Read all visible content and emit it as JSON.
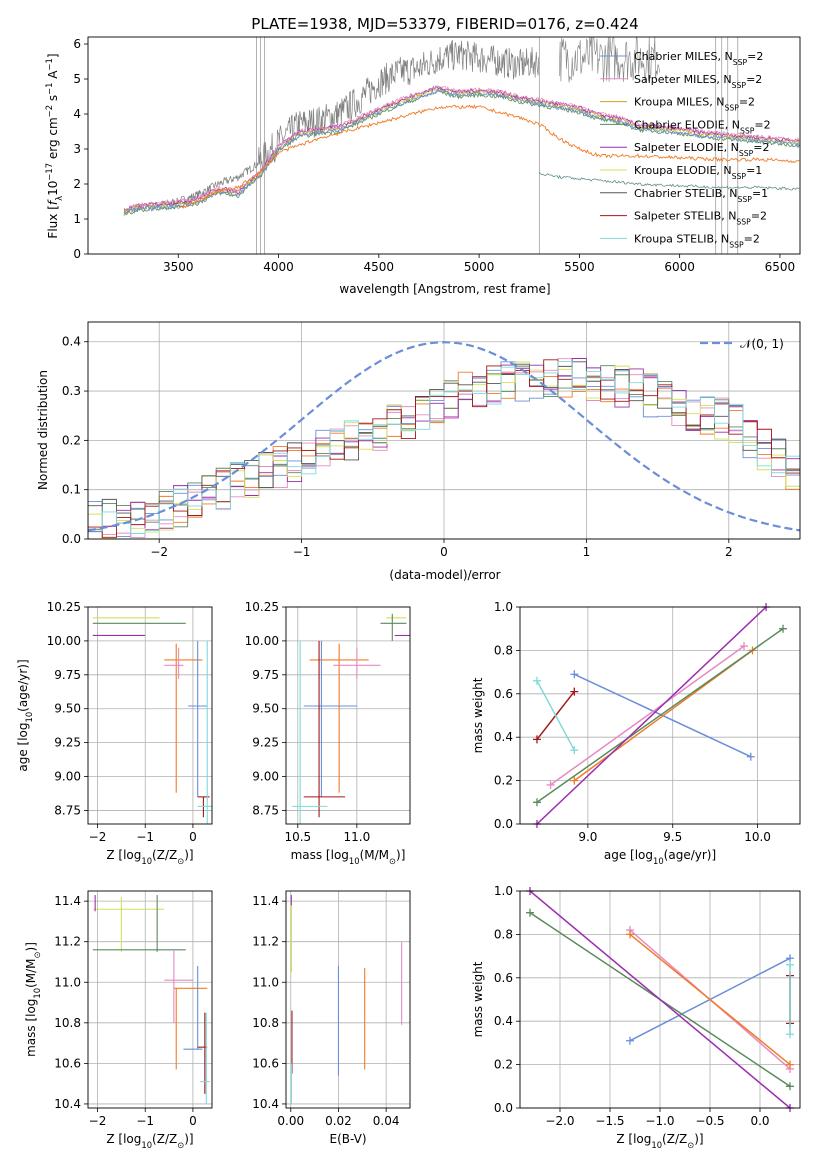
{
  "figure_title": "PLATE=1938, MJD=53379, FIBERID=0176, z=0.424",
  "palette": {
    "chabrier_miles": "#6a8fd8",
    "salpeter_miles": "#e58ac3",
    "kroupa_miles": "#c9a227",
    "chabrier_elodie": "#5b8a5b",
    "salpeter_elodie": "#9b2fae",
    "kroupa_elodie": "#d4e05a",
    "chabrier_stelib": "#555555",
    "salpeter_stelib": "#a01818",
    "kroupa_stelib": "#7fd9d9",
    "data": "#808080",
    "orange": "#f07b27"
  },
  "chart_data": [
    {
      "id": "spectrum",
      "type": "line",
      "title": "PLATE=1938, MJD=53379, FIBERID=0176, z=0.424",
      "xlabel": "wavelength [Angstrom, rest frame]",
      "ylabel_parts": [
        "Flux [f",
        "λ",
        "10",
        "−17",
        " erg cm",
        "−2",
        " s",
        "−1",
        " A",
        "−1",
        "]"
      ],
      "xlim": [
        3050,
        6600
      ],
      "ylim": [
        0,
        6.2
      ],
      "xticks": [
        3500,
        4000,
        4500,
        5000,
        5500,
        6000,
        6500
      ],
      "yticks": [
        0,
        1,
        2,
        3,
        4,
        5,
        6
      ],
      "legend_position": "upper-right",
      "legend": [
        {
          "name": "Chabrier MILES, N",
          "sub": "SSP",
          "suffix": "=2",
          "color": "#6a8fd8"
        },
        {
          "name": "Salpeter MILES, N",
          "sub": "SSP",
          "suffix": "=2",
          "color": "#e58ac3"
        },
        {
          "name": "Kroupa MILES, N",
          "sub": "SSP",
          "suffix": "=2",
          "color": "#c9a227"
        },
        {
          "name": "Chabrier ELODIE, N",
          "sub": "SSP",
          "suffix": "=2",
          "color": "#5b8a5b"
        },
        {
          "name": "Salpeter ELODIE, N",
          "sub": "SSP",
          "suffix": "=2",
          "color": "#9b2fae"
        },
        {
          "name": "Kroupa ELODIE, N",
          "sub": "SSP",
          "suffix": "=1",
          "color": "#d4e05a"
        },
        {
          "name": "Chabrier STELIB, N",
          "sub": "SSP",
          "suffix": "=1",
          "color": "#555555"
        },
        {
          "name": "Salpeter STELIB, N",
          "sub": "SSP",
          "suffix": "=2",
          "color": "#a01818"
        },
        {
          "name": "Kroupa STELIB, N",
          "sub": "SSP",
          "suffix": "=2",
          "color": "#7fd9d9"
        }
      ],
      "model_curve": {
        "x": [
          3230,
          3300,
          3400,
          3500,
          3600,
          3700,
          3800,
          3850,
          3900,
          3950,
          4000,
          4100,
          4200,
          4300,
          4400,
          4500,
          4600,
          4700,
          4800,
          4850,
          4900,
          5000,
          5100,
          5200,
          5300,
          5400,
          5500,
          5600,
          5700,
          5800,
          5900,
          6000,
          6100,
          6200,
          6300,
          6400,
          6500,
          6600
        ],
        "y": [
          1.2,
          1.3,
          1.35,
          1.4,
          1.5,
          1.8,
          1.7,
          2.0,
          2.2,
          2.6,
          3.0,
          3.4,
          3.5,
          3.55,
          3.8,
          4.05,
          4.3,
          4.5,
          4.7,
          4.6,
          4.55,
          4.6,
          4.55,
          4.4,
          4.3,
          4.2,
          4.1,
          3.9,
          3.8,
          3.6,
          3.55,
          3.5,
          3.4,
          3.35,
          3.3,
          3.25,
          3.2,
          3.15
        ]
      },
      "red_curve": {
        "x": [
          3500,
          3600,
          3700,
          3800,
          3900,
          4000,
          4200,
          4400,
          4600,
          4800,
          5000,
          5200,
          5300,
          5400,
          5500,
          5600,
          5800,
          6000,
          6200,
          6400,
          6600
        ],
        "y": [
          1.3,
          1.5,
          1.8,
          1.9,
          2.3,
          2.9,
          3.3,
          3.6,
          3.9,
          4.2,
          4.2,
          3.9,
          3.7,
          3.3,
          3.0,
          2.8,
          2.8,
          2.75,
          2.7,
          2.7,
          2.65
        ]
      },
      "low_curve": {
        "x": [
          5300,
          5400,
          5500,
          5600,
          5800,
          6000,
          6200,
          6400,
          6600
        ],
        "y": [
          2.3,
          2.2,
          2.15,
          2.1,
          2.0,
          1.95,
          1.9,
          1.9,
          1.85
        ]
      },
      "data_curve": {
        "x": [
          3230,
          3300,
          3400,
          3500,
          3600,
          3700,
          3800,
          3900,
          4000,
          4100,
          4200,
          4300,
          4400,
          4500,
          4600,
          4700,
          4800,
          4900,
          5000,
          5100,
          5200,
          5300
        ],
        "y": [
          1.2,
          1.3,
          1.4,
          1.5,
          1.7,
          2.0,
          2.2,
          2.6,
          3.2,
          3.7,
          3.8,
          4.0,
          4.4,
          4.9,
          5.2,
          5.3,
          5.6,
          5.7,
          5.6,
          5.5,
          5.4,
          5.5
        ]
      }
    },
    {
      "id": "residuals",
      "type": "line",
      "xlabel": "(data-model)/error",
      "ylabel": "Normed distribution",
      "xlim": [
        -2.5,
        2.5
      ],
      "ylim": [
        0,
        0.44
      ],
      "xticks": [
        -2,
        -1,
        0,
        1,
        2
      ],
      "xtick_labels": [
        "−2",
        "−1",
        "0",
        "1",
        "2"
      ],
      "yticks": [
        0.0,
        0.1,
        0.2,
        0.3,
        0.4
      ],
      "ytick_labels": [
        "0.0",
        "0.1",
        "0.2",
        "0.3",
        "0.4"
      ],
      "legend_label": "𝒩(0, 1)",
      "gaussian": {
        "mean": 0,
        "sigma": 1
      }
    },
    {
      "id": "age_vs_z",
      "type": "scatter",
      "xlabel": "Z [log",
      "xlabel_sub": "10",
      "xlabel_rest": "(Z/Z",
      "xlabel_sun": "⊙",
      "xlabel_end": ")]",
      "ylabel": "age  [log",
      "ylabel_sub": "10",
      "ylabel_rest": "(age/yr)]",
      "xlim": [
        -2.2,
        0.4
      ],
      "ylim": [
        8.65,
        10.25
      ],
      "xticks": [
        -2,
        -1,
        0
      ],
      "xtick_labels": [
        "−2",
        "−1",
        "0"
      ],
      "yticks": [
        8.75,
        9.0,
        9.25,
        9.5,
        9.75,
        10.0,
        10.25
      ],
      "ytick_labels": [
        "8.75",
        "9.00",
        "9.25",
        "9.50",
        "9.75",
        "10.00",
        "10.25"
      ]
    },
    {
      "id": "age_vs_mass",
      "type": "scatter",
      "xlabel": "mass [log",
      "xlabel_sub": "10",
      "xlabel_rest": "(M/M",
      "xlabel_sun": "⊙",
      "xlabel_end": ")]",
      "xlim": [
        10.4,
        11.45
      ],
      "ylim": [
        8.65,
        10.25
      ],
      "xticks": [
        10.5,
        11.0
      ],
      "xtick_labels": [
        "10.5",
        "11.0"
      ],
      "yticks": [
        8.75,
        9.0,
        9.25,
        9.5,
        9.75,
        10.0,
        10.25
      ],
      "ytick_labels": [
        "8.75",
        "9.00",
        "9.25",
        "9.50",
        "9.75",
        "10.00",
        "10.25"
      ]
    },
    {
      "id": "weight_vs_age",
      "type": "line",
      "xlabel": "age  [log",
      "xlabel_sub": "10",
      "xlabel_rest": "(age/yr)]",
      "ylabel": "mass weight",
      "xlim": [
        8.6,
        10.25
      ],
      "ylim": [
        0,
        1
      ],
      "xticks": [
        9.0,
        9.5,
        10.0
      ],
      "xtick_labels": [
        "9.0",
        "9.5",
        "10.0"
      ],
      "yticks": [
        0.0,
        0.2,
        0.4,
        0.6,
        0.8,
        1.0
      ],
      "ytick_labels": [
        "0.0",
        "0.2",
        "0.4",
        "0.6",
        "0.8",
        "1.0"
      ],
      "series": [
        {
          "color": "#6a8fd8",
          "x": [
            8.92,
            9.96
          ],
          "y": [
            0.69,
            0.31
          ]
        },
        {
          "color": "#e58ac3",
          "x": [
            8.78,
            9.92
          ],
          "y": [
            0.18,
            0.82
          ]
        },
        {
          "color": "#f07b27",
          "x": [
            8.92,
            9.97
          ],
          "y": [
            0.2,
            0.8
          ]
        },
        {
          "color": "#5b8a5b",
          "x": [
            8.7,
            10.15
          ],
          "y": [
            0.1,
            0.9
          ]
        },
        {
          "color": "#9b2fae",
          "x": [
            8.7,
            10.05
          ],
          "y": [
            0.0,
            1.0
          ]
        },
        {
          "color": "#a01818",
          "x": [
            8.7,
            8.92
          ],
          "y": [
            0.39,
            0.61
          ]
        },
        {
          "color": "#7fd9d9",
          "x": [
            8.7,
            8.92
          ],
          "y": [
            0.66,
            0.34
          ]
        }
      ]
    },
    {
      "id": "mass_vs_z",
      "type": "scatter",
      "xlabel": "Z [log",
      "xlabel_sub": "10",
      "xlabel_rest": "(Z/Z",
      "xlabel_sun": "⊙",
      "xlabel_end": ")]",
      "ylabel": "mass [log",
      "ylabel_sub": "10",
      "ylabel_rest": "(M/M",
      "ylabel_sun": "⊙",
      "ylabel_end": ")]",
      "xlim": [
        -2.2,
        0.4
      ],
      "ylim": [
        10.38,
        11.45
      ],
      "xticks": [
        -2,
        -1,
        0
      ],
      "xtick_labels": [
        "−2",
        "−1",
        "0"
      ],
      "yticks": [
        10.4,
        10.6,
        10.8,
        11.0,
        11.2,
        11.4
      ],
      "ytick_labels": [
        "10.4",
        "10.6",
        "10.8",
        "11.0",
        "11.2",
        "11.4"
      ]
    },
    {
      "id": "mass_vs_ebv",
      "type": "scatter",
      "xlabel": "E(B-V)",
      "xlim": [
        -0.002,
        0.05
      ],
      "ylim": [
        10.38,
        11.45
      ],
      "xticks": [
        0.0,
        0.02,
        0.04
      ],
      "xtick_labels": [
        "0.00",
        "0.02",
        "0.04"
      ],
      "yticks": [
        10.4,
        10.6,
        10.8,
        11.0,
        11.2,
        11.4
      ],
      "ytick_labels": [
        "10.4",
        "10.6",
        "10.8",
        "11.0",
        "11.2",
        "11.4"
      ]
    },
    {
      "id": "weight_vs_z",
      "type": "line",
      "xlabel": "Z [log",
      "xlabel_sub": "10",
      "xlabel_rest": "(Z/Z",
      "xlabel_sun": "⊙",
      "xlabel_end": ")]",
      "ylabel": "mass weight",
      "xlim": [
        -2.4,
        0.4
      ],
      "ylim": [
        0,
        1
      ],
      "xticks": [
        -2.0,
        -1.5,
        -1.0,
        -0.5,
        0.0
      ],
      "xtick_labels": [
        "−2.0",
        "−1.5",
        "−1.0",
        "−0.5",
        "0.0"
      ],
      "yticks": [
        0.0,
        0.2,
        0.4,
        0.6,
        0.8,
        1.0
      ],
      "ytick_labels": [
        "0.0",
        "0.2",
        "0.4",
        "0.6",
        "0.8",
        "1.0"
      ],
      "series": [
        {
          "color": "#6a8fd8",
          "x": [
            -1.3,
            0.3
          ],
          "y": [
            0.31,
            0.69
          ]
        },
        {
          "color": "#e58ac3",
          "x": [
            -1.3,
            0.3
          ],
          "y": [
            0.82,
            0.18
          ]
        },
        {
          "color": "#f07b27",
          "x": [
            -1.3,
            0.3
          ],
          "y": [
            0.8,
            0.2
          ]
        },
        {
          "color": "#5b8a5b",
          "x": [
            -2.3,
            0.3
          ],
          "y": [
            0.9,
            0.1
          ]
        },
        {
          "color": "#9b2fae",
          "x": [
            -2.3,
            0.3
          ],
          "y": [
            1.0,
            0.0
          ]
        },
        {
          "color": "#a01818",
          "x": [
            0.3,
            0.3
          ],
          "y": [
            0.39,
            0.61
          ]
        },
        {
          "color": "#7fd9d9",
          "x": [
            0.3,
            0.3
          ],
          "y": [
            0.66,
            0.34
          ]
        }
      ]
    }
  ]
}
